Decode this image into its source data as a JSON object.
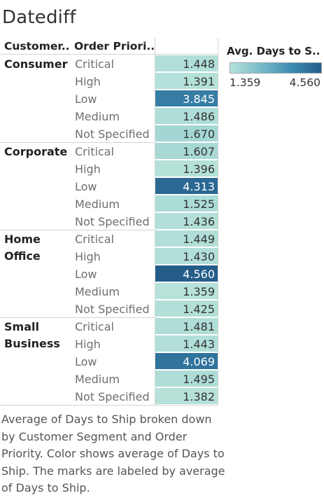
{
  "title": "Datediff",
  "headers": {
    "segment": "Customer..",
    "priority": "Order Priori.."
  },
  "legend": {
    "title": "Avg. Days to S..",
    "min_label": "1.359",
    "max_label": "4.560",
    "color_low": "#b6e2d9",
    "color_high": "#255d89"
  },
  "caption": "Average of Days to Ship broken down by Customer Segment and Order Priority.  Color shows average of Days to Ship.  The marks are labeled by average of Days to Ship.",
  "chart_data": {
    "type": "heatmap",
    "title": "Datediff",
    "row_dimensions": [
      "Customer Segment",
      "Order Priority"
    ],
    "measure": "Avg. Days to Ship",
    "color_range": [
      1.359,
      4.56
    ],
    "segments": [
      {
        "name_lines": [
          "Consumer"
        ],
        "rows": [
          {
            "priority": "Critical",
            "value": 1.448,
            "label": "1.448"
          },
          {
            "priority": "High",
            "value": 1.391,
            "label": "1.391"
          },
          {
            "priority": "Low",
            "value": 3.845,
            "label": "3.845"
          },
          {
            "priority": "Medium",
            "value": 1.486,
            "label": "1.486"
          },
          {
            "priority": "Not Specified",
            "value": 1.67,
            "label": "1.670"
          }
        ]
      },
      {
        "name_lines": [
          "Corporate"
        ],
        "rows": [
          {
            "priority": "Critical",
            "value": 1.607,
            "label": "1.607"
          },
          {
            "priority": "High",
            "value": 1.396,
            "label": "1.396"
          },
          {
            "priority": "Low",
            "value": 4.313,
            "label": "4.313"
          },
          {
            "priority": "Medium",
            "value": 1.525,
            "label": "1.525"
          },
          {
            "priority": "Not Specified",
            "value": 1.436,
            "label": "1.436"
          }
        ]
      },
      {
        "name_lines": [
          "Home",
          "Office"
        ],
        "rows": [
          {
            "priority": "Critical",
            "value": 1.449,
            "label": "1.449"
          },
          {
            "priority": "High",
            "value": 1.43,
            "label": "1.430"
          },
          {
            "priority": "Low",
            "value": 4.56,
            "label": "4.560"
          },
          {
            "priority": "Medium",
            "value": 1.359,
            "label": "1.359"
          },
          {
            "priority": "Not Specified",
            "value": 1.425,
            "label": "1.425"
          }
        ]
      },
      {
        "name_lines": [
          "Small",
          "Business"
        ],
        "rows": [
          {
            "priority": "Critical",
            "value": 1.481,
            "label": "1.481"
          },
          {
            "priority": "High",
            "value": 1.443,
            "label": "1.443"
          },
          {
            "priority": "Low",
            "value": 4.069,
            "label": "4.069"
          },
          {
            "priority": "Medium",
            "value": 1.495,
            "label": "1.495"
          },
          {
            "priority": "Not Specified",
            "value": 1.382,
            "label": "1.382"
          }
        ]
      }
    ]
  }
}
